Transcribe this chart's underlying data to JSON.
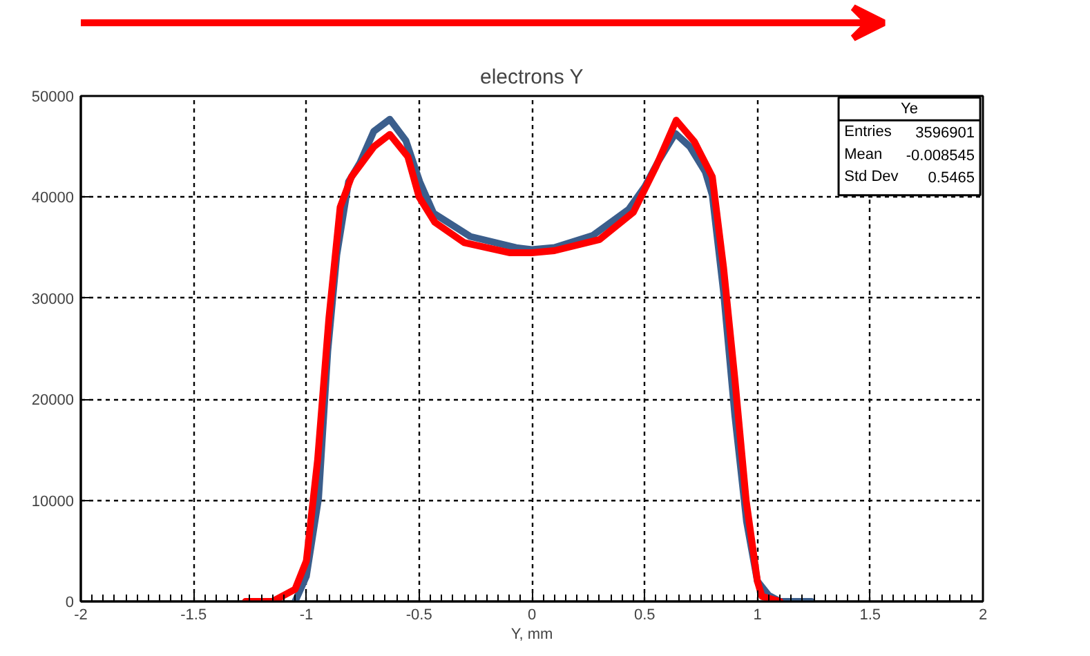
{
  "chart_data": {
    "type": "line",
    "title": "electrons Y",
    "xlabel": "Y, mm",
    "xlim": [
      -2,
      2
    ],
    "ylim": [
      0,
      50000
    ],
    "xticks": [
      -2,
      -1.5,
      -1,
      -0.5,
      0,
      0.5,
      1,
      1.5,
      2
    ],
    "yticks": [
      0,
      10000,
      20000,
      30000,
      40000,
      50000
    ],
    "grid": true,
    "marker": "none",
    "line_style": "solid",
    "annotations": [
      "Ye",
      "Entries",
      "3596901",
      "Mean",
      "-0.008545",
      "Std Dev",
      "0.5465"
    ],
    "series": [
      {
        "color": "#3b5e8c",
        "x": [
          -1.05,
          -1.0,
          -0.946,
          -0.905,
          -0.865,
          -0.813,
          -0.762,
          -0.701,
          -0.63,
          -0.559,
          -0.497,
          -0.436,
          -0.273,
          -0.07,
          0.0,
          0.1,
          0.27,
          0.43,
          0.5,
          0.56,
          0.636,
          0.7,
          0.769,
          0.8,
          0.85,
          0.9,
          0.952,
          1.0,
          1.05,
          1.1,
          1.15,
          1.24
        ],
        "values": [
          0,
          2500,
          10200,
          24800,
          34300,
          41500,
          43400,
          46500,
          47700,
          45600,
          41500,
          38400,
          36100,
          35000,
          34800,
          35000,
          36200,
          38800,
          41000,
          43500,
          46300,
          45000,
          42500,
          40200,
          30600,
          18400,
          7900,
          2000,
          600,
          0,
          0,
          0
        ]
      },
      {
        "color": "#ff0000",
        "x": [
          -1.27,
          -1.15,
          -1.05,
          -1.0,
          -0.95,
          -0.9,
          -0.85,
          -0.8,
          -0.7,
          -0.63,
          -0.55,
          -0.5,
          -0.43,
          -0.3,
          -0.1,
          0.0,
          0.1,
          0.3,
          0.45,
          0.55,
          0.64,
          0.72,
          0.8,
          0.85,
          0.9,
          0.95,
          1.0,
          1.02,
          1.1
        ],
        "values": [
          0,
          0,
          1200,
          4000,
          14000,
          28000,
          39000,
          42000,
          45000,
          46200,
          44000,
          40000,
          37500,
          35500,
          34500,
          34500,
          34700,
          35800,
          38500,
          43000,
          47600,
          45500,
          42000,
          33000,
          22000,
          10000,
          2000,
          500,
          0
        ]
      }
    ]
  }
}
